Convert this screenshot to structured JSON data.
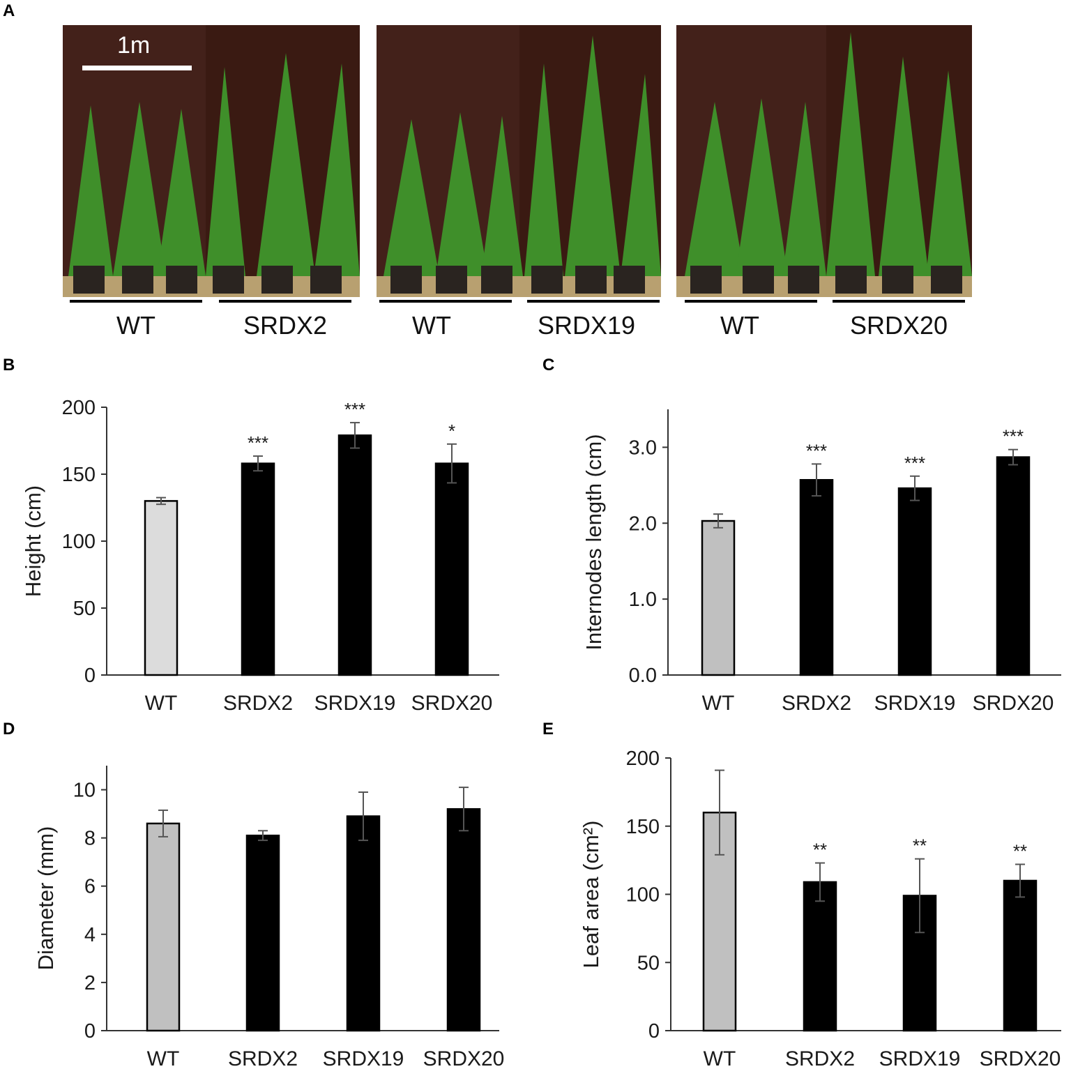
{
  "panels": {
    "A": "A",
    "B": "B",
    "C": "C",
    "D": "D",
    "E": "E"
  },
  "photos": {
    "scale_label": "1m",
    "groups": [
      {
        "wt_label": "WT",
        "line_label": "SRDX2"
      },
      {
        "wt_label": "WT",
        "line_label": "SRDX19"
      },
      {
        "wt_label": "WT",
        "line_label": "SRDX20"
      }
    ]
  },
  "colors": {
    "wt_bar": "#c0c0c0",
    "wt_bar_light": "#dcdcdc",
    "line_bar": "#000000",
    "error_bar": "#555555",
    "photo_background": "#3a1a12",
    "foliage": "#3f8f2a"
  },
  "chart_data": [
    {
      "panel": "B",
      "type": "bar",
      "categories": [
        "WT",
        "SRDX2",
        "SRDX19",
        "SRDX20"
      ],
      "values": [
        130,
        158,
        179,
        158
      ],
      "errors": [
        2.5,
        5.5,
        9.5,
        14.5
      ],
      "significance": [
        "",
        "***",
        "***",
        "*"
      ],
      "ylabel": "Height (cm)",
      "ylim": [
        0,
        200
      ],
      "yticks": [
        "0",
        "50",
        "100",
        "150",
        "200"
      ],
      "ytick_values": [
        0,
        50,
        100,
        150,
        200
      ]
    },
    {
      "panel": "C",
      "type": "bar",
      "categories": [
        "WT",
        "SRDX2",
        "SRDX19",
        "SRDX20"
      ],
      "values": [
        2.03,
        2.57,
        2.46,
        2.87
      ],
      "errors": [
        0.09,
        0.21,
        0.16,
        0.1
      ],
      "significance": [
        "",
        "***",
        "***",
        "***"
      ],
      "ylabel": "Internodes length (cm)",
      "ylim": [
        0,
        3.5
      ],
      "yticks": [
        "0.0",
        "1.0",
        "2.0",
        "3.0"
      ],
      "ytick_values": [
        0,
        1,
        2,
        3
      ]
    },
    {
      "panel": "D",
      "type": "bar",
      "categories": [
        "WT",
        "SRDX2",
        "SRDX19",
        "SRDX20"
      ],
      "values": [
        8.6,
        8.1,
        8.9,
        9.2
      ],
      "errors": [
        0.55,
        0.2,
        1.0,
        0.9
      ],
      "significance": [
        "",
        "",
        "",
        ""
      ],
      "ylabel": "Diameter (mm)",
      "ylim": [
        0,
        11
      ],
      "yticks": [
        "0",
        "2",
        "4",
        "6",
        "8",
        "10"
      ],
      "ytick_values": [
        0,
        2,
        4,
        6,
        8,
        10
      ]
    },
    {
      "panel": "E",
      "type": "bar",
      "categories": [
        "WT",
        "SRDX2",
        "SRDX19",
        "SRDX20"
      ],
      "values": [
        160,
        109,
        99,
        110
      ],
      "errors": [
        31,
        14,
        27,
        12
      ],
      "significance": [
        "",
        "**",
        "**",
        "**"
      ],
      "ylabel": "Leaf area (cm²)",
      "ylim": [
        0,
        200
      ],
      "yticks": [
        "0",
        "50",
        "100",
        "150",
        "200"
      ],
      "ytick_values": [
        0,
        50,
        100,
        150,
        200
      ]
    }
  ]
}
